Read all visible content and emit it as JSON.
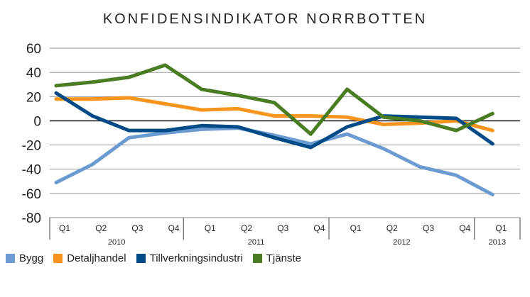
{
  "chart_data": {
    "type": "line",
    "title": "KONFIDENSINDIKATOR NORRBOTTEN",
    "xlabel": "",
    "ylabel": "",
    "ylim": [
      -80,
      60
    ],
    "yticks": [
      "60",
      "40",
      "20",
      "0",
      "-20",
      "-40",
      "-60",
      "-80"
    ],
    "categories": [
      "Q1",
      "Q2",
      "Q3",
      "Q4",
      "Q1",
      "Q2",
      "Q3",
      "Q4",
      "Q1",
      "Q2",
      "Q3",
      "Q4",
      "Q1"
    ],
    "year_groups": [
      {
        "label": "2010",
        "count": 4
      },
      {
        "label": "2011",
        "count": 4
      },
      {
        "label": "2012",
        "count": 4
      },
      {
        "label": "2013",
        "count": 1
      }
    ],
    "series": [
      {
        "name": "Bygg",
        "color": "#6b9bd1",
        "values": [
          -51,
          -36,
          -14,
          -10,
          -7,
          -6,
          -12,
          -19,
          -11,
          -23,
          -38,
          -45,
          -61
        ]
      },
      {
        "name": "Detaljhandel",
        "color": "#f7941d",
        "values": [
          18,
          18,
          19,
          14,
          9,
          10,
          4,
          4,
          3,
          -3,
          -2,
          0,
          -8
        ]
      },
      {
        "name": "Tillverkningsindustri",
        "color": "#004b87",
        "values": [
          23,
          4,
          -8,
          -8,
          -4,
          -5,
          -14,
          -22,
          -5,
          4,
          3,
          2,
          -19
        ]
      },
      {
        "name": "Tjänste",
        "color": "#4a7c23",
        "values": [
          29,
          32,
          36,
          46,
          26,
          21,
          15,
          -11,
          26,
          3,
          0,
          -8,
          6
        ]
      }
    ],
    "legend": "bottom-left",
    "grid": true
  }
}
